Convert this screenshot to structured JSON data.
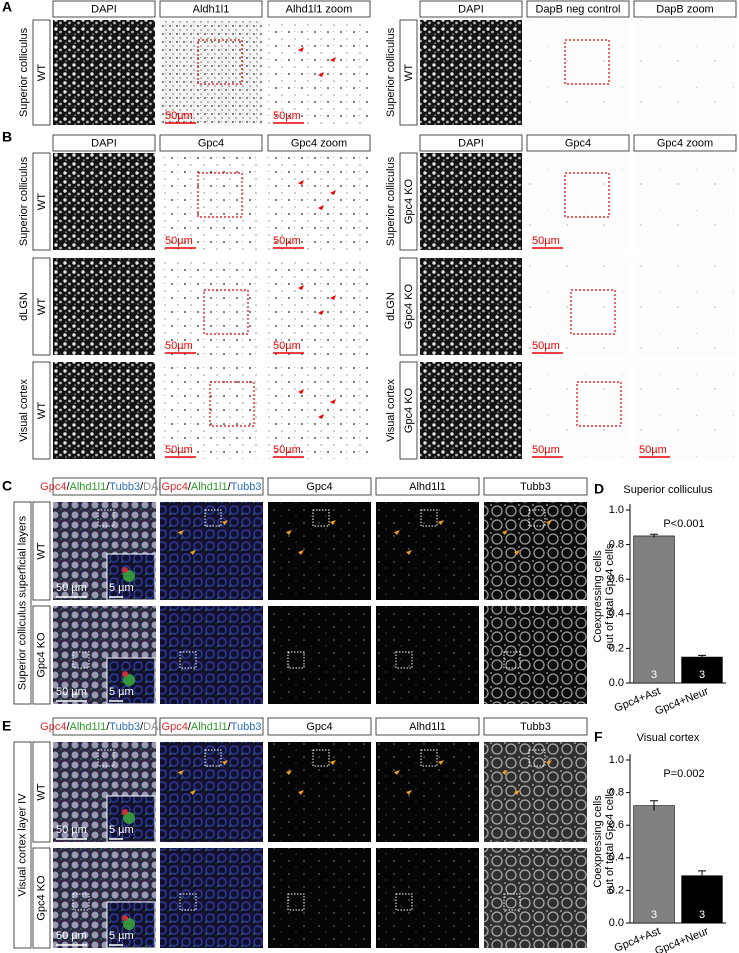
{
  "panels": {
    "A": {
      "letter": "A",
      "groups": [
        {
          "headers": [
            "DAPI",
            "Aldh1l1",
            "Alhd1l1 zoom"
          ],
          "rows": [
            {
              "region": "Superior colliculus",
              "genotype": "WT",
              "scales": [
                null,
                "50µm",
                "50µm"
              ]
            }
          ]
        },
        {
          "headers": [
            "DAPI",
            "DapB neg control",
            "DapB zoom"
          ],
          "rows": [
            {
              "region": "Superior colliculus",
              "genotype": "WT"
            }
          ]
        }
      ]
    },
    "B": {
      "letter": "B",
      "groups": [
        {
          "headers": [
            "DAPI",
            "Gpc4",
            "Gpc4 zoom"
          ],
          "rows": [
            {
              "region": "Superior colliculus",
              "genotype": "WT",
              "scales": [
                null,
                "50µm",
                "50µm"
              ]
            },
            {
              "region": "dLGN",
              "genotype": "WT",
              "scales": [
                null,
                "50µm",
                "50µm"
              ]
            },
            {
              "region": "Visual cortex",
              "genotype": "WT",
              "scales": [
                null,
                "50µm",
                "50µm"
              ]
            }
          ]
        },
        {
          "headers": [
            "DAPI",
            "Gpc4",
            "Gpc4 zoom"
          ],
          "rows": [
            {
              "region": "Superior colliculus",
              "genotype": "Gpc4 KO",
              "scales": [
                null,
                "50µm",
                null
              ]
            },
            {
              "region": "dLGN",
              "genotype": "Gpc4 KO",
              "scales": [
                null,
                "50µm",
                null
              ]
            },
            {
              "region": "Visual cortex",
              "genotype": "Gpc4 KO",
              "scales": [
                null,
                "50µm",
                "50µm"
              ]
            }
          ]
        }
      ]
    },
    "C": {
      "letter": "C",
      "region": "Superior colliculus superficial layers",
      "headers": [
        {
          "parts": [
            "Gpc4",
            "/",
            "Alhd1l1",
            "/",
            "Tubb3",
            "/",
            "DAPI"
          ],
          "colors": [
            "#e0262a",
            "#000000",
            "#2a9d2a",
            "#000000",
            "#2b6cc4",
            "#000000",
            "#8c8c8c"
          ]
        },
        {
          "parts": [
            "Gpc4",
            "/",
            "Alhd1l1",
            "/",
            "Tubb3"
          ],
          "colors": [
            "#e0262a",
            "#000000",
            "#2a9d2a",
            "#000000",
            "#2b6cc4"
          ]
        },
        {
          "parts": [
            "Gpc4"
          ],
          "colors": [
            "#000000"
          ]
        },
        {
          "parts": [
            "Alhd1l1"
          ],
          "colors": [
            "#000000"
          ]
        },
        {
          "parts": [
            "Tubb3"
          ],
          "colors": [
            "#000000"
          ]
        }
      ],
      "rows": [
        {
          "genotype": "WT",
          "scale": "50 µm",
          "inset_scale": "5 µm"
        },
        {
          "genotype": "Gpc4 KO",
          "scale": "50 µm",
          "inset_scale": "5 µm"
        }
      ]
    },
    "E": {
      "letter": "E",
      "region": "Visual cortex layer IV",
      "headers": [
        {
          "parts": [
            "Gpc4",
            "/",
            "Alhd1l1",
            "/",
            "Tubb3",
            "/",
            "DAPI"
          ],
          "colors": [
            "#e0262a",
            "#000000",
            "#2a9d2a",
            "#000000",
            "#2b6cc4",
            "#000000",
            "#8c8c8c"
          ]
        },
        {
          "parts": [
            "Gpc4",
            "/",
            "Alhd1l1",
            "/",
            "Tubb3"
          ],
          "colors": [
            "#e0262a",
            "#000000",
            "#2a9d2a",
            "#000000",
            "#2b6cc4"
          ]
        },
        {
          "parts": [
            "Gpc4"
          ],
          "colors": [
            "#000000"
          ]
        },
        {
          "parts": [
            "Alhd1l1"
          ],
          "colors": [
            "#000000"
          ]
        },
        {
          "parts": [
            "Tubb3"
          ],
          "colors": [
            "#000000"
          ]
        }
      ],
      "rows": [
        {
          "genotype": "WT",
          "scale": "50 µm",
          "inset_scale": "5 µm"
        },
        {
          "genotype": "Gpc4 KO",
          "scale": "50 µm",
          "inset_scale": "5 µm"
        }
      ]
    }
  },
  "chart_data": [
    {
      "type": "bar",
      "letter": "D",
      "title": "Superior colliculus",
      "ylabel": [
        "Coexpressing cells",
        "out of total Gpc4 cells"
      ],
      "categories": [
        "Gpc4+Ast",
        "Gpc4+Neur"
      ],
      "values": [
        0.85,
        0.15
      ],
      "errors": [
        0.01,
        0.01
      ],
      "n": [
        3,
        3
      ],
      "colors": [
        "#808080",
        "#000000"
      ],
      "annotation": "P<0.001",
      "ylim": [
        0,
        1
      ],
      "yticks": [
        {
          "value": 0,
          "label": "0.0"
        },
        0.2,
        0.4,
        0.6,
        0.8,
        {
          "value": 1,
          "label": "1.0"
        }
      ]
    },
    {
      "type": "bar",
      "letter": "F",
      "title": "Visual cortex",
      "ylabel": [
        "Coexpressing cells",
        "out of total Gpc4 cells"
      ],
      "categories": [
        "Gpc4+Ast",
        "Gpc4+Neur"
      ],
      "values": [
        0.72,
        0.29
      ],
      "errors": [
        0.03,
        0.03
      ],
      "n": [
        3,
        3
      ],
      "colors": [
        "#808080",
        "#000000"
      ],
      "annotation": "P=0.002",
      "ylim": [
        0,
        1
      ],
      "yticks": [
        {
          "value": 0,
          "label": "0.0"
        },
        0.2,
        0.4,
        0.6,
        0.8,
        {
          "value": 1,
          "label": "1.0"
        }
      ]
    }
  ]
}
